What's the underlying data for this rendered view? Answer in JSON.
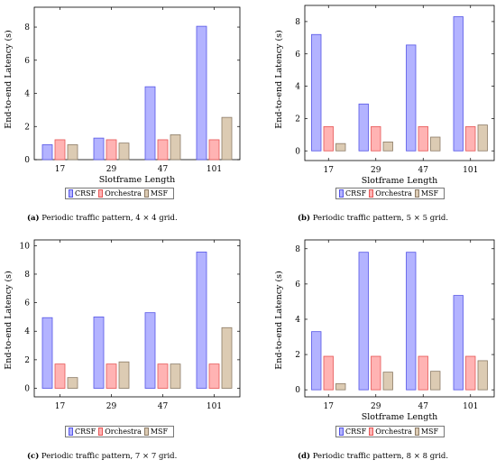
{
  "colors": {
    "CRSF": {
      "fill": "#b3b3ff",
      "stroke": "#5555e6"
    },
    "Orchestra": {
      "fill": "#ffb3b3",
      "stroke": "#e65555"
    },
    "MSF": {
      "fill": "#dccbb3",
      "stroke": "#8c7b66"
    }
  },
  "chart_data": [
    {
      "type": "bar",
      "caption_label": "(a)",
      "caption_text": " Periodic traffic pattern, 4 × 4 grid.",
      "xlabel": "Slotframe Length",
      "ylabel": "End-to-end Latency (s)",
      "categories": [
        "17",
        "29",
        "47",
        "101"
      ],
      "ylim": [
        0,
        9.2
      ],
      "yticks": [
        0,
        2,
        4,
        6,
        8
      ],
      "series": [
        {
          "name": "CRSF",
          "values": [
            0.9,
            1.3,
            4.4,
            8.05
          ]
        },
        {
          "name": "Orchestra",
          "values": [
            1.2,
            1.2,
            1.2,
            1.2
          ]
        },
        {
          "name": "MSF",
          "values": [
            0.9,
            1.0,
            1.5,
            2.55
          ]
        }
      ],
      "legend_position": "below"
    },
    {
      "type": "bar",
      "caption_label": "(b)",
      "caption_text": " Periodic traffic pattern, 5 × 5 grid.",
      "xlabel": "Slotframe Length",
      "ylabel": "End-to-end Latency (s)",
      "categories": [
        "17",
        "29",
        "47",
        "101"
      ],
      "ylim": [
        -0.6,
        9.0
      ],
      "yticks": [
        0,
        2,
        4,
        6,
        8
      ],
      "series": [
        {
          "name": "CRSF",
          "values": [
            7.2,
            2.9,
            6.55,
            8.3
          ]
        },
        {
          "name": "Orchestra",
          "values": [
            1.5,
            1.5,
            1.5,
            1.5
          ]
        },
        {
          "name": "MSF",
          "values": [
            0.45,
            0.55,
            0.85,
            1.6
          ]
        }
      ],
      "legend_position": "below"
    },
    {
      "type": "bar",
      "caption_label": "(c)",
      "caption_text": " Periodic traffic pattern, 7 × 7 grid.",
      "xlabel": "",
      "ylabel": "End-to-end Latency (s)",
      "categories": [
        "17",
        "29",
        "47",
        "101"
      ],
      "ylim": [
        -0.6,
        10.4
      ],
      "yticks": [
        0,
        2,
        4,
        6,
        8,
        10
      ],
      "series": [
        {
          "name": "CRSF",
          "values": [
            4.95,
            5.0,
            5.3,
            9.55
          ]
        },
        {
          "name": "Orchestra",
          "values": [
            1.7,
            1.7,
            1.7,
            1.7
          ]
        },
        {
          "name": "MSF",
          "values": [
            0.75,
            1.85,
            1.7,
            4.25
          ]
        }
      ],
      "legend_position": "below"
    },
    {
      "type": "bar",
      "caption_label": "(d)",
      "caption_text": " Periodic traffic pattern, 8 × 8 grid.",
      "xlabel": "Slotframe Length",
      "ylabel": "End-to-end Latency (s)",
      "categories": [
        "17",
        "29",
        "47",
        "101"
      ],
      "ylim": [
        -0.4,
        8.5
      ],
      "yticks": [
        0,
        2,
        4,
        6,
        8
      ],
      "series": [
        {
          "name": "CRSF",
          "values": [
            3.3,
            7.8,
            7.8,
            5.35
          ]
        },
        {
          "name": "Orchestra",
          "values": [
            1.9,
            1.9,
            1.9,
            1.9
          ]
        },
        {
          "name": "MSF",
          "values": [
            0.35,
            1.0,
            1.05,
            1.65
          ]
        }
      ],
      "legend_position": "below"
    }
  ]
}
